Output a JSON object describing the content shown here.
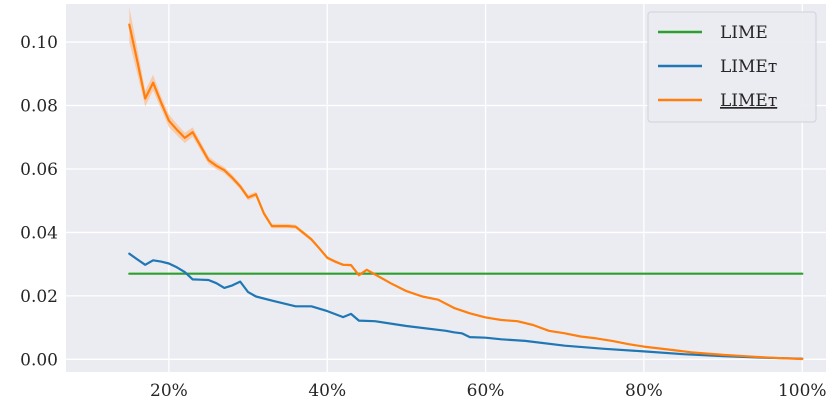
{
  "chart_data": {
    "type": "line",
    "title": "",
    "xlabel": "",
    "ylabel": "",
    "xlim": [
      7,
      103
    ],
    "ylim": [
      -0.004,
      0.112
    ],
    "x_ticks": [
      20,
      40,
      60,
      80,
      100
    ],
    "x_tick_labels": [
      "20%",
      "40%",
      "60%",
      "80%",
      "100%"
    ],
    "y_ticks": [
      0.0,
      0.02,
      0.04,
      0.06,
      0.08,
      0.1
    ],
    "y_tick_labels": [
      "0.00",
      "0.02",
      "0.04",
      "0.06",
      "0.08",
      "0.10"
    ],
    "grid": true,
    "background": "#ebebf2",
    "legend_position": "top-right",
    "series": [
      {
        "name": "LIME",
        "color": "#2ca02c",
        "x": [
          15,
          100
        ],
        "y": [
          0.027,
          0.027
        ]
      },
      {
        "name": "LIMEт",
        "color": "#1f77b4",
        "x": [
          15,
          16,
          17,
          18,
          19,
          20,
          21,
          22,
          23,
          24,
          25,
          26,
          27,
          28,
          29,
          30,
          31,
          33,
          36,
          38,
          40,
          42,
          43,
          44,
          46,
          50,
          55,
          56,
          57,
          58,
          60,
          62,
          65,
          70,
          75,
          80,
          85,
          90,
          95,
          100
        ],
        "y": [
          0.0333,
          0.0315,
          0.0298,
          0.0312,
          0.0308,
          0.0302,
          0.029,
          0.0275,
          0.0252,
          0.0251,
          0.025,
          0.024,
          0.0225,
          0.0233,
          0.0245,
          0.0212,
          0.0198,
          0.0185,
          0.0167,
          0.0167,
          0.0152,
          0.0133,
          0.0143,
          0.0122,
          0.012,
          0.0105,
          0.009,
          0.0085,
          0.0082,
          0.007,
          0.0068,
          0.0063,
          0.0058,
          0.0043,
          0.0033,
          0.0025,
          0.0016,
          0.001,
          0.0005,
          0.0002
        ]
      },
      {
        "name": "LIMEт",
        "underline": true,
        "color": "#ff7f0e",
        "band_color": "#f8c9a4",
        "x": [
          15,
          16,
          17,
          18,
          19,
          20,
          21,
          22,
          23,
          24,
          25,
          26,
          27,
          28,
          29,
          30,
          31,
          32,
          33,
          34,
          35,
          36,
          37,
          38,
          39,
          40,
          41,
          42,
          43,
          44,
          45,
          46,
          48,
          50,
          52,
          54,
          56,
          58,
          60,
          62,
          64,
          66,
          68,
          70,
          72,
          74,
          76,
          78,
          80,
          82,
          84,
          86,
          88,
          90,
          92,
          94,
          96,
          98,
          100
        ],
        "y": [
          0.1055,
          0.094,
          0.0822,
          0.0872,
          0.081,
          0.0752,
          0.0724,
          0.0698,
          0.0716,
          0.0672,
          0.0628,
          0.061,
          0.0596,
          0.0572,
          0.0545,
          0.051,
          0.052,
          0.046,
          0.042,
          0.042,
          0.042,
          0.0418,
          0.0398,
          0.0378,
          0.035,
          0.032,
          0.0308,
          0.0298,
          0.0297,
          0.0265,
          0.0282,
          0.0268,
          0.024,
          0.0215,
          0.0198,
          0.0188,
          0.0162,
          0.0145,
          0.0132,
          0.0124,
          0.012,
          0.0108,
          0.009,
          0.0082,
          0.0072,
          0.0066,
          0.0058,
          0.0048,
          0.004,
          0.0034,
          0.0028,
          0.0022,
          0.0018,
          0.0014,
          0.0011,
          0.0008,
          0.0005,
          0.0003,
          0.0001
        ],
        "band_halfwidth": [
          0.0055,
          0.004,
          0.0025,
          0.0025,
          0.002,
          0.002,
          0.0018,
          0.0016,
          0.0015,
          0.0014,
          0.0012,
          0.0011,
          0.001,
          0.001,
          0.0009,
          0.0009,
          0.0008,
          0.0008,
          0.0007,
          0.0007,
          0.0007,
          0.0006,
          0.0006,
          0.0006,
          0.0005,
          0.0005,
          0.0005,
          0.0004,
          0.0004,
          0.0004,
          0.0004,
          0.0004,
          0.0003,
          0.0003,
          0.0003,
          0.0003,
          0.0003,
          0.0002,
          0.0002,
          0.0002,
          0.0002,
          0.0002,
          0.0002,
          0.0002,
          0.0002,
          0.0001,
          0.0001,
          0.0001,
          0.0001,
          0.0001,
          0.0001,
          0.0001,
          0.0001,
          0.0001,
          0.0001,
          0.0001,
          0.0001,
          0.0001,
          0.0001
        ]
      }
    ]
  }
}
